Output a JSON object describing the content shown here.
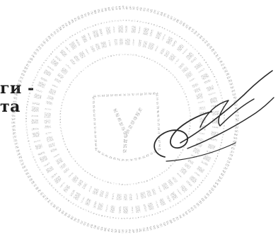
{
  "document": {
    "text_fragment_lines": [
      "ги -",
      "та"
    ],
    "seal": {
      "type": "round-seal",
      "ink_color": "#8a8a8a",
      "emblem": "shield-with-letter"
    },
    "signature": {
      "type": "handwritten-signature",
      "ink_color": "#2a2a2a"
    }
  }
}
